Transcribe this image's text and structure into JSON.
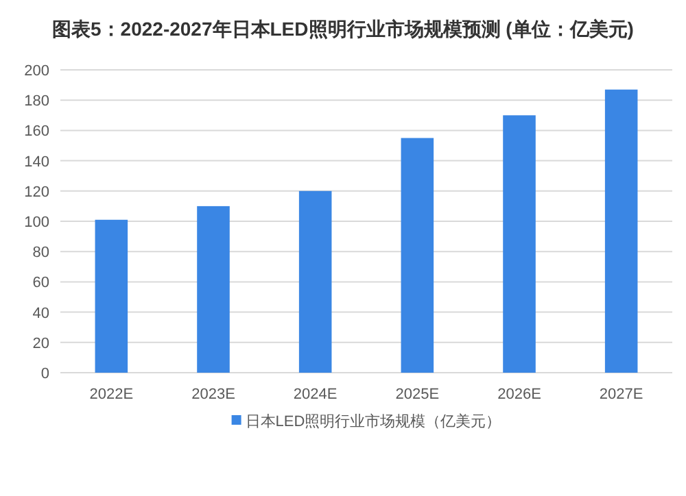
{
  "chart_data": {
    "type": "bar",
    "title": "图表5：2022-2027年日本LED照明行业市场规模预测 (单位：亿美元)",
    "categories": [
      "2022E",
      "2023E",
      "2024E",
      "2025E",
      "2026E",
      "2027E"
    ],
    "series": [
      {
        "name": "日本LED照明行业市场规模（亿美元）",
        "color": "#3a86e4",
        "values": [
          101,
          110,
          120,
          155,
          170,
          187
        ]
      }
    ],
    "ylim": [
      0,
      200
    ],
    "yticks": [
      0,
      20,
      40,
      60,
      80,
      100,
      120,
      140,
      160,
      180,
      200
    ],
    "grid": "y",
    "legend": "bottom"
  }
}
